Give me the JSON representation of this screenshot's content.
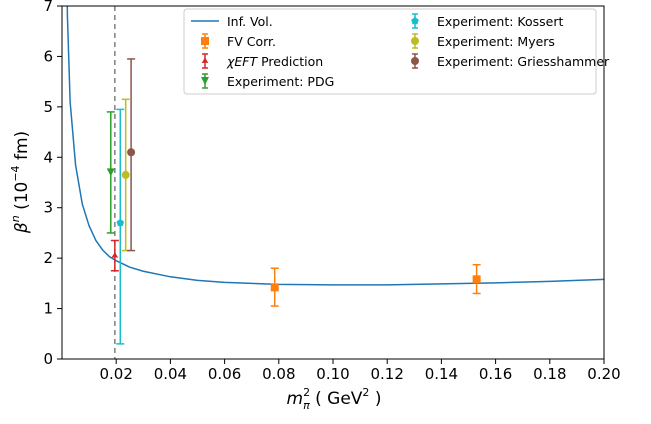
{
  "chart_data": {
    "type": "scatter",
    "xlabel": "m_π^2 ( GeV^2 )",
    "ylabel": "β^n (10^-4 fm)",
    "xlim": [
      0.0,
      0.2
    ],
    "ylim": [
      0,
      7
    ],
    "x_ticks": [
      "0.02",
      "0.04",
      "0.06",
      "0.08",
      "0.10",
      "0.12",
      "0.14",
      "0.16",
      "0.18",
      "0.20"
    ],
    "y_ticks": [
      "0",
      "1",
      "2",
      "3",
      "4",
      "5",
      "6",
      "7"
    ],
    "vertical_reference_line": {
      "x": 0.0195,
      "style": "dashed",
      "color": "#7f7f7f"
    },
    "legend": {
      "placement": "top-right",
      "columns": 2
    },
    "series": [
      {
        "name": "Inf. Vol.",
        "kind": "line",
        "color": "#1f77b4",
        "x": [
          0.001,
          0.002,
          0.003,
          0.005,
          0.0075,
          0.01,
          0.0125,
          0.015,
          0.0175,
          0.02,
          0.025,
          0.03,
          0.04,
          0.05,
          0.06,
          0.08,
          0.1,
          0.12,
          0.14,
          0.16,
          0.18,
          0.2
        ],
        "y": [
          10.5,
          6.8,
          5.1,
          3.85,
          3.07,
          2.64,
          2.35,
          2.16,
          2.03,
          1.95,
          1.82,
          1.74,
          1.63,
          1.56,
          1.52,
          1.48,
          1.47,
          1.47,
          1.49,
          1.51,
          1.54,
          1.58
        ]
      },
      {
        "name": "FV Corr.",
        "kind": "errorbar",
        "marker": "square",
        "color": "#ff7f0e",
        "x": [
          0.0785,
          0.153
        ],
        "y": [
          1.42,
          1.58
        ],
        "yerr_low": [
          1.05,
          1.3
        ],
        "yerr_high": [
          1.8,
          1.87
        ]
      },
      {
        "name": "χEFT Prediction",
        "kind": "errorbar",
        "marker": "star",
        "color": "#d62728",
        "x": [
          0.0195
        ],
        "y": [
          2.05
        ],
        "yerr_low": [
          1.75
        ],
        "yerr_high": [
          2.35
        ]
      },
      {
        "name": "Experiment: PDG",
        "kind": "errorbar",
        "marker": "triangle-down",
        "color": "#2ca02c",
        "x": [
          0.018
        ],
        "y": [
          3.7
        ],
        "yerr_low": [
          2.5
        ],
        "yerr_high": [
          4.9
        ]
      },
      {
        "name": "Experiment: Kossert",
        "kind": "errorbar",
        "marker": "pentagon",
        "color": "#17becf",
        "x": [
          0.0215
        ],
        "y": [
          2.7
        ],
        "yerr_low": [
          0.3
        ],
        "yerr_high": [
          4.95
        ]
      },
      {
        "name": "Experiment: Myers",
        "kind": "errorbar",
        "marker": "circle",
        "color": "#bcbd22",
        "x": [
          0.0235
        ],
        "y": [
          3.65
        ],
        "yerr_low": [
          2.15
        ],
        "yerr_high": [
          5.15
        ]
      },
      {
        "name": "Experiment: Griesshammer",
        "kind": "errorbar",
        "marker": "circle",
        "color": "#8c564b",
        "x": [
          0.0255
        ],
        "y": [
          4.1
        ],
        "yerr_low": [
          2.15
        ],
        "yerr_high": [
          5.95
        ]
      }
    ]
  }
}
